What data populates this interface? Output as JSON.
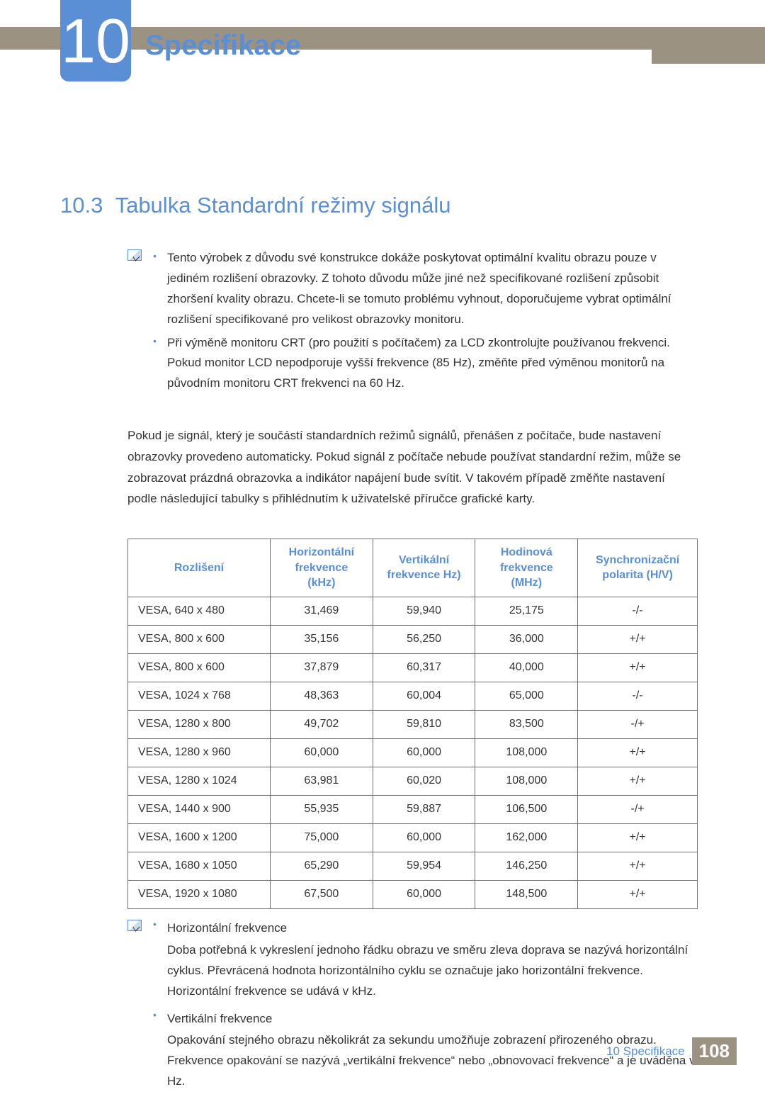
{
  "chapter": {
    "number": "10",
    "title": "Specifikace"
  },
  "section": {
    "number": "10.3",
    "title": "Tabulka Standardní režimy signálu"
  },
  "notes1": {
    "items": [
      "Tento výrobek z důvodu své konstrukce dokáže poskytovat optimální kvalitu obrazu pouze v jediném rozlišení obrazovky. Z tohoto důvodu může jiné než specifikované rozlišení způsobit zhoršení kvality obrazu. Chcete-li se tomuto problému vyhnout, doporučujeme vybrat optimální rozlišení specifikované pro velikost obrazovky monitoru.",
      "Při výměně monitoru CRT (pro použití s počítačem) za LCD zkontrolujte používanou frekvenci. Pokud monitor LCD nepodporuje vyšší frekvence (85 Hz), změňte před výměnou monitorů na původním monitoru CRT frekvenci na 60 Hz."
    ]
  },
  "paragraph": "Pokud je signál, který je součástí standardních režimů signálů, přenášen z počítače, bude nastavení obrazovky provedeno automaticky. Pokud signál z počítače nebude používat standardní režim, může se zobrazovat prázdná obrazovka a indikátor napájení bude svítit. V takovém případě změňte nastavení podle následující tabulky s přihlédnutím k uživatelské příručce grafické karty.",
  "table": {
    "columns": [
      "Rozlišení",
      "Horizontální frekvence (kHz)",
      "Vertikální frekvence Hz)",
      "Hodinová frekvence (MHz)",
      "Synchronizační polarita (H/V)"
    ],
    "col_html": [
      "Rozlišení",
      "Horizontální<br>frekvence<br>(kHz)",
      "Vertikální<br>frekvence Hz)",
      "Hodinová<br>frekvence<br>(MHz)",
      "Synchronizační<br>polarita (H/V)"
    ],
    "col_widths": [
      "25%",
      "18%",
      "18%",
      "18%",
      "21%"
    ],
    "rows": [
      [
        "VESA, 640 x 480",
        "31,469",
        "59,940",
        "25,175",
        "-/-"
      ],
      [
        "VESA, 800 x 600",
        "35,156",
        "56,250",
        "36,000",
        "+/+"
      ],
      [
        "VESA, 800 x 600",
        "37,879",
        "60,317",
        "40,000",
        "+/+"
      ],
      [
        "VESA, 1024 x 768",
        "48,363",
        "60,004",
        "65,000",
        "-/-"
      ],
      [
        "VESA, 1280 x 800",
        "49,702",
        "59,810",
        "83,500",
        "-/+"
      ],
      [
        "VESA, 1280 x 960",
        "60,000",
        "60,000",
        "108,000",
        "+/+"
      ],
      [
        "VESA, 1280 x 1024",
        "63,981",
        "60,020",
        "108,000",
        "+/+"
      ],
      [
        "VESA, 1440 x 900",
        "55,935",
        "59,887",
        "106,500",
        "-/+"
      ],
      [
        "VESA, 1600 x 1200",
        "75,000",
        "60,000",
        "162,000",
        "+/+"
      ],
      [
        "VESA, 1680 x 1050",
        "65,290",
        "59,954",
        "146,250",
        "+/+"
      ],
      [
        "VESA, 1920 x 1080",
        "67,500",
        "60,000",
        "148,500",
        "+/+"
      ]
    ]
  },
  "notes2": {
    "items": [
      {
        "term": "Horizontální frekvence",
        "body": "Doba potřebná k vykreslení jednoho řádku obrazu ve směru zleva doprava se nazývá horizontální cyklus. Převrácená hodnota horizontálního cyklu se označuje jako horizontální frekvence. Horizontální frekvence se udává v kHz."
      },
      {
        "term": "Vertikální frekvence",
        "body": "Opakování stejného obrazu několikrát za sekundu umožňuje zobrazení přirozeného obrazu. Frekvence opakování se nazývá „vertikální frekvence“ nebo „obnovovací frekvence“ a je uváděna v Hz."
      }
    ]
  },
  "footer": {
    "label": "10 Specifikace",
    "page": "108"
  },
  "colors": {
    "accent": "#5a8fd6",
    "band": "#9b9281",
    "text": "#333333",
    "border": "#707070"
  }
}
